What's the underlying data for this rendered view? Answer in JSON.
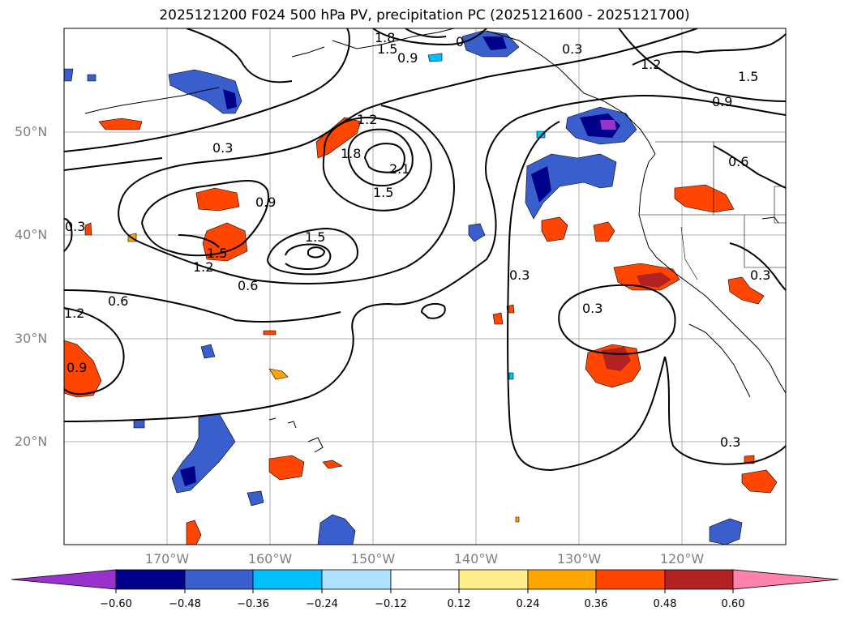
{
  "title": "2025121200 F024 500 hPa PV, precipitation PC (2025121600 - 2025121700)",
  "axes": {
    "lat_labels": [
      "50°N",
      "40°N",
      "30°N",
      "20°N"
    ],
    "lon_labels": [
      "170°W",
      "160°W",
      "150°W",
      "140°W",
      "130°W",
      "120°W"
    ],
    "tick_color": "#808080"
  },
  "colorbar": {
    "ticks": [
      "−0.60",
      "−0.48",
      "−0.36",
      "−0.24",
      "−0.12",
      "0.12",
      "0.24",
      "0.36",
      "0.48",
      "0.60"
    ],
    "colors": [
      "#9932cc",
      "#00008b",
      "#3a5fcd",
      "#00bfff",
      "#b0e2ff",
      "#ffffff",
      "#ffec8b",
      "#ffa500",
      "#ff4500",
      "#b22222",
      "#ff82ab"
    ],
    "extend": "both"
  },
  "contour_labels": [
    "1.8",
    "1.5",
    "0.9",
    "0",
    "0.3",
    "1.2",
    "1.5",
    "0.9",
    "0.3",
    "1.2",
    "1.8",
    "2.1",
    "1.5",
    "0.9",
    "0.3",
    "1.5",
    "1.5",
    "1.2",
    "0.6",
    "0.6",
    "1.2",
    "0.9",
    "0.3",
    "0.3",
    "0.6",
    "0.3",
    "0.3"
  ]
}
